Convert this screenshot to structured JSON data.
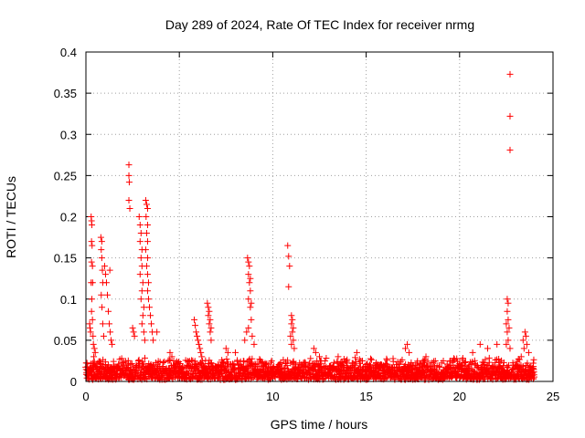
{
  "chart_data": {
    "type": "scatter",
    "title": "Day 289 of 2024, Rate Of TEC Index for receiver nrmg",
    "xlabel": "GPS time / hours",
    "ylabel": "ROTI / TECUs",
    "xlim": [
      0,
      25
    ],
    "ylim": [
      0,
      0.4
    ],
    "xticks": [
      0,
      5,
      10,
      15,
      20,
      25
    ],
    "yticks": [
      0,
      0.05,
      0.1,
      0.15,
      0.2,
      0.25,
      0.3,
      0.35,
      0.4
    ],
    "ytick_labels": [
      "0",
      "0.05",
      "0.1",
      "0.15",
      "0.2",
      "0.25",
      "0.3",
      "0.35",
      "0.4"
    ],
    "grid": true,
    "marker": "+",
    "series": [
      {
        "name": "ROTI",
        "color": "#ff0000",
        "points": [
          [
            0.2,
            0.07
          ],
          [
            0.22,
            0.065
          ],
          [
            0.25,
            0.06
          ],
          [
            0.28,
            0.2
          ],
          [
            0.3,
            0.195
          ],
          [
            0.32,
            0.19
          ],
          [
            0.3,
            0.17
          ],
          [
            0.33,
            0.165
          ],
          [
            0.3,
            0.145
          ],
          [
            0.35,
            0.14
          ],
          [
            0.28,
            0.12
          ],
          [
            0.32,
            0.1
          ],
          [
            0.3,
            0.085
          ],
          [
            0.35,
            0.075
          ],
          [
            0.38,
            0.055
          ],
          [
            0.4,
            0.045
          ],
          [
            0.45,
            0.04
          ],
          [
            0.5,
            0.035
          ],
          [
            0.42,
            0.03
          ],
          [
            0.36,
            0.12
          ],
          [
            0.8,
            0.175
          ],
          [
            0.85,
            0.17
          ],
          [
            0.82,
            0.16
          ],
          [
            0.85,
            0.15
          ],
          [
            0.88,
            0.135
          ],
          [
            0.9,
            0.12
          ],
          [
            0.82,
            0.105
          ],
          [
            0.86,
            0.09
          ],
          [
            0.9,
            0.07
          ],
          [
            0.95,
            0.055
          ],
          [
            1.0,
            0.14
          ],
          [
            1.05,
            0.13
          ],
          [
            1.1,
            0.12
          ],
          [
            1.15,
            0.105
          ],
          [
            1.2,
            0.085
          ],
          [
            1.25,
            0.07
          ],
          [
            1.3,
            0.06
          ],
          [
            1.35,
            0.05
          ],
          [
            1.4,
            0.045
          ],
          [
            1.28,
            0.135
          ],
          [
            2.3,
            0.263
          ],
          [
            2.3,
            0.25
          ],
          [
            2.32,
            0.242
          ],
          [
            2.3,
            0.22
          ],
          [
            2.35,
            0.21
          ],
          [
            2.5,
            0.065
          ],
          [
            2.55,
            0.06
          ],
          [
            2.6,
            0.055
          ],
          [
            2.85,
            0.2
          ],
          [
            2.9,
            0.19
          ],
          [
            2.95,
            0.18
          ],
          [
            2.9,
            0.17
          ],
          [
            3.0,
            0.16
          ],
          [
            2.95,
            0.15
          ],
          [
            3.0,
            0.14
          ],
          [
            2.9,
            0.13
          ],
          [
            3.05,
            0.12
          ],
          [
            3.0,
            0.11
          ],
          [
            2.95,
            0.1
          ],
          [
            3.1,
            0.09
          ],
          [
            3.05,
            0.08
          ],
          [
            3.0,
            0.07
          ],
          [
            3.1,
            0.06
          ],
          [
            3.15,
            0.05
          ],
          [
            3.2,
            0.22
          ],
          [
            3.25,
            0.215
          ],
          [
            3.3,
            0.21
          ],
          [
            3.22,
            0.2
          ],
          [
            3.3,
            0.19
          ],
          [
            3.25,
            0.18
          ],
          [
            3.3,
            0.17
          ],
          [
            3.2,
            0.16
          ],
          [
            3.3,
            0.15
          ],
          [
            3.25,
            0.14
          ],
          [
            3.3,
            0.13
          ],
          [
            3.35,
            0.12
          ],
          [
            3.3,
            0.11
          ],
          [
            3.35,
            0.1
          ],
          [
            3.4,
            0.09
          ],
          [
            3.45,
            0.08
          ],
          [
            3.5,
            0.07
          ],
          [
            3.55,
            0.06
          ],
          [
            3.6,
            0.05
          ],
          [
            3.8,
            0.06
          ],
          [
            4.5,
            0.035
          ],
          [
            4.6,
            0.03
          ],
          [
            4.7,
            0.025
          ],
          [
            5.8,
            0.075
          ],
          [
            5.85,
            0.068
          ],
          [
            5.9,
            0.06
          ],
          [
            5.95,
            0.055
          ],
          [
            6.0,
            0.05
          ],
          [
            6.05,
            0.045
          ],
          [
            6.1,
            0.04
          ],
          [
            6.15,
            0.035
          ],
          [
            6.2,
            0.03
          ],
          [
            6.5,
            0.095
          ],
          [
            6.55,
            0.09
          ],
          [
            6.6,
            0.085
          ],
          [
            6.55,
            0.08
          ],
          [
            6.65,
            0.075
          ],
          [
            6.6,
            0.07
          ],
          [
            6.7,
            0.065
          ],
          [
            6.65,
            0.06
          ],
          [
            6.7,
            0.05
          ],
          [
            7.5,
            0.04
          ],
          [
            7.6,
            0.035
          ],
          [
            8.0,
            0.035
          ],
          [
            8.65,
            0.15
          ],
          [
            8.7,
            0.145
          ],
          [
            8.75,
            0.14
          ],
          [
            8.7,
            0.13
          ],
          [
            8.8,
            0.125
          ],
          [
            8.75,
            0.12
          ],
          [
            8.8,
            0.11
          ],
          [
            8.7,
            0.1
          ],
          [
            8.85,
            0.095
          ],
          [
            8.8,
            0.09
          ],
          [
            8.85,
            0.075
          ],
          [
            8.7,
            0.065
          ],
          [
            8.6,
            0.06
          ],
          [
            8.9,
            0.055
          ],
          [
            8.5,
            0.05
          ],
          [
            9.0,
            0.045
          ],
          [
            10.8,
            0.165
          ],
          [
            10.85,
            0.152
          ],
          [
            10.9,
            0.14
          ],
          [
            10.85,
            0.115
          ],
          [
            11.0,
            0.08
          ],
          [
            11.05,
            0.075
          ],
          [
            11.0,
            0.07
          ],
          [
            11.1,
            0.065
          ],
          [
            11.05,
            0.06
          ],
          [
            10.95,
            0.055
          ],
          [
            11.1,
            0.05
          ],
          [
            11.0,
            0.045
          ],
          [
            11.15,
            0.04
          ],
          [
            12.2,
            0.04
          ],
          [
            12.3,
            0.035
          ],
          [
            12.5,
            0.03
          ],
          [
            13.5,
            0.03
          ],
          [
            14.5,
            0.035
          ],
          [
            14.8,
            0.025
          ],
          [
            17.1,
            0.04
          ],
          [
            17.2,
            0.045
          ],
          [
            17.3,
            0.035
          ],
          [
            18.2,
            0.03
          ],
          [
            19.5,
            0.025
          ],
          [
            20.7,
            0.035
          ],
          [
            21.1,
            0.045
          ],
          [
            21.5,
            0.04
          ],
          [
            22.0,
            0.045
          ],
          [
            22.55,
            0.1
          ],
          [
            22.6,
            0.095
          ],
          [
            22.55,
            0.085
          ],
          [
            22.6,
            0.075
          ],
          [
            22.5,
            0.07
          ],
          [
            22.65,
            0.065
          ],
          [
            22.55,
            0.06
          ],
          [
            22.6,
            0.05
          ],
          [
            22.5,
            0.045
          ],
          [
            22.7,
            0.04
          ],
          [
            22.7,
            0.373
          ],
          [
            22.7,
            0.322
          ],
          [
            22.7,
            0.281
          ],
          [
            23.5,
            0.06
          ],
          [
            23.55,
            0.055
          ],
          [
            23.4,
            0.05
          ],
          [
            23.6,
            0.045
          ],
          [
            23.45,
            0.04
          ],
          [
            23.7,
            0.035
          ],
          [
            23.3,
            0.03
          ]
        ],
        "baseline_band": {
          "x_start": 0,
          "x_end": 24,
          "typical_max": 0.028
        }
      }
    ]
  }
}
